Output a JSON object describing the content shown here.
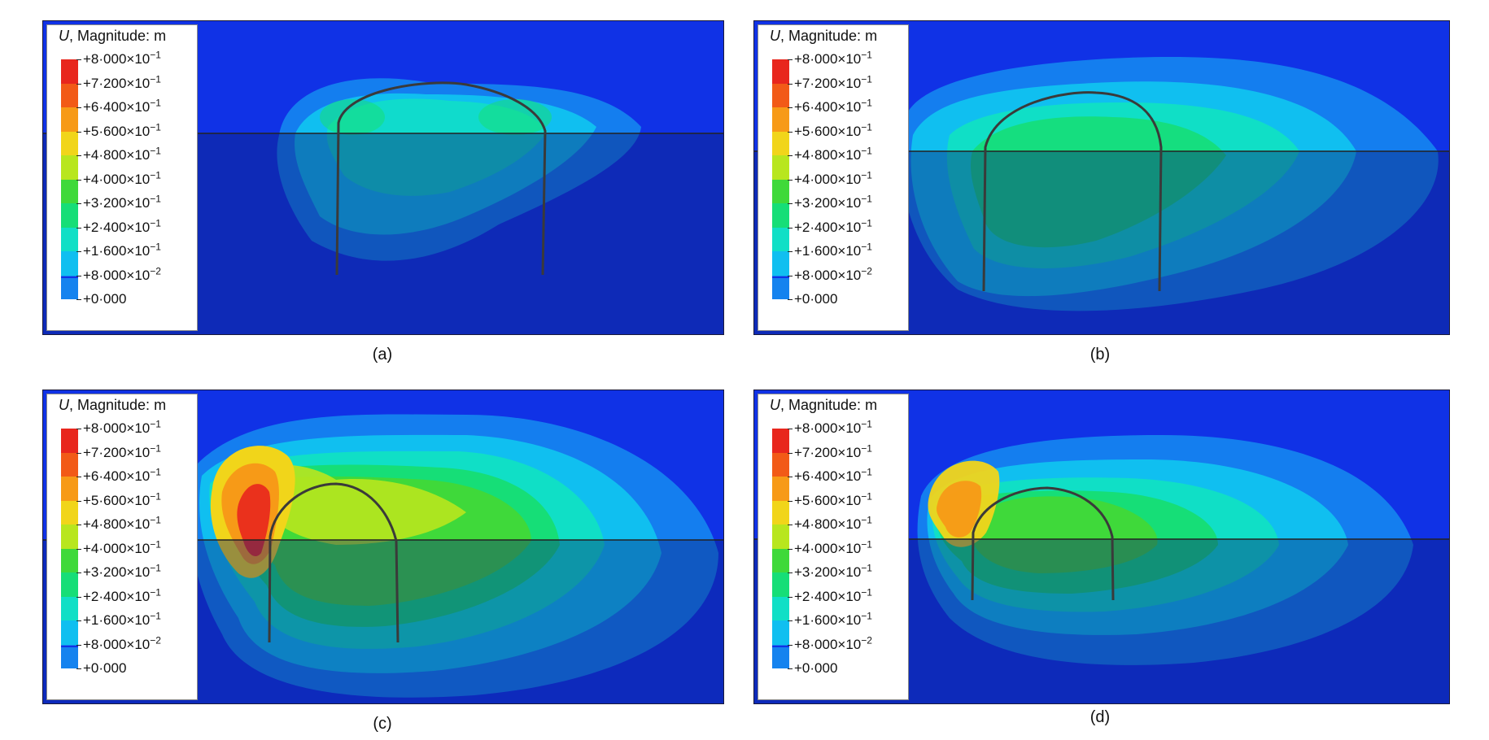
{
  "panels": [
    {
      "id": "a",
      "caption": "(a)"
    },
    {
      "id": "b",
      "caption": "(b)"
    },
    {
      "id": "c",
      "caption": "(c)"
    },
    {
      "id": "d",
      "caption": "(d)"
    }
  ],
  "legend": {
    "title_var": "U",
    "title_rest": ", Magnitude: m",
    "levels": [
      {
        "mant": "+8·000",
        "exp": "−1",
        "color": "#e8261d"
      },
      {
        "mant": "+7·200",
        "exp": "−1",
        "color": "#f25a17"
      },
      {
        "mant": "+6·400",
        "exp": "−1",
        "color": "#f79a17"
      },
      {
        "mant": "+5·600",
        "exp": "−1",
        "color": "#f1d51a"
      },
      {
        "mant": "+4·800",
        "exp": "−1",
        "color": "#b8e61e"
      },
      {
        "mant": "+4·000",
        "exp": "−1",
        "color": "#3fd93a"
      },
      {
        "mant": "+3·200",
        "exp": "−1",
        "color": "#16de77"
      },
      {
        "mant": "+2·400",
        "exp": "−1",
        "color": "#10dfc6"
      },
      {
        "mant": "+1·600",
        "exp": "−1",
        "color": "#10bff0"
      },
      {
        "mant": "+8·000",
        "exp": "−2",
        "color": "#1583ef"
      },
      {
        "mant": "+0·000",
        "exp": "",
        "color": "#1032e6"
      }
    ]
  },
  "colors": {
    "soil_background": "#1030d8",
    "lower_zone_shade": "#0b1e78",
    "support_line": "#3a3a3a"
  }
}
